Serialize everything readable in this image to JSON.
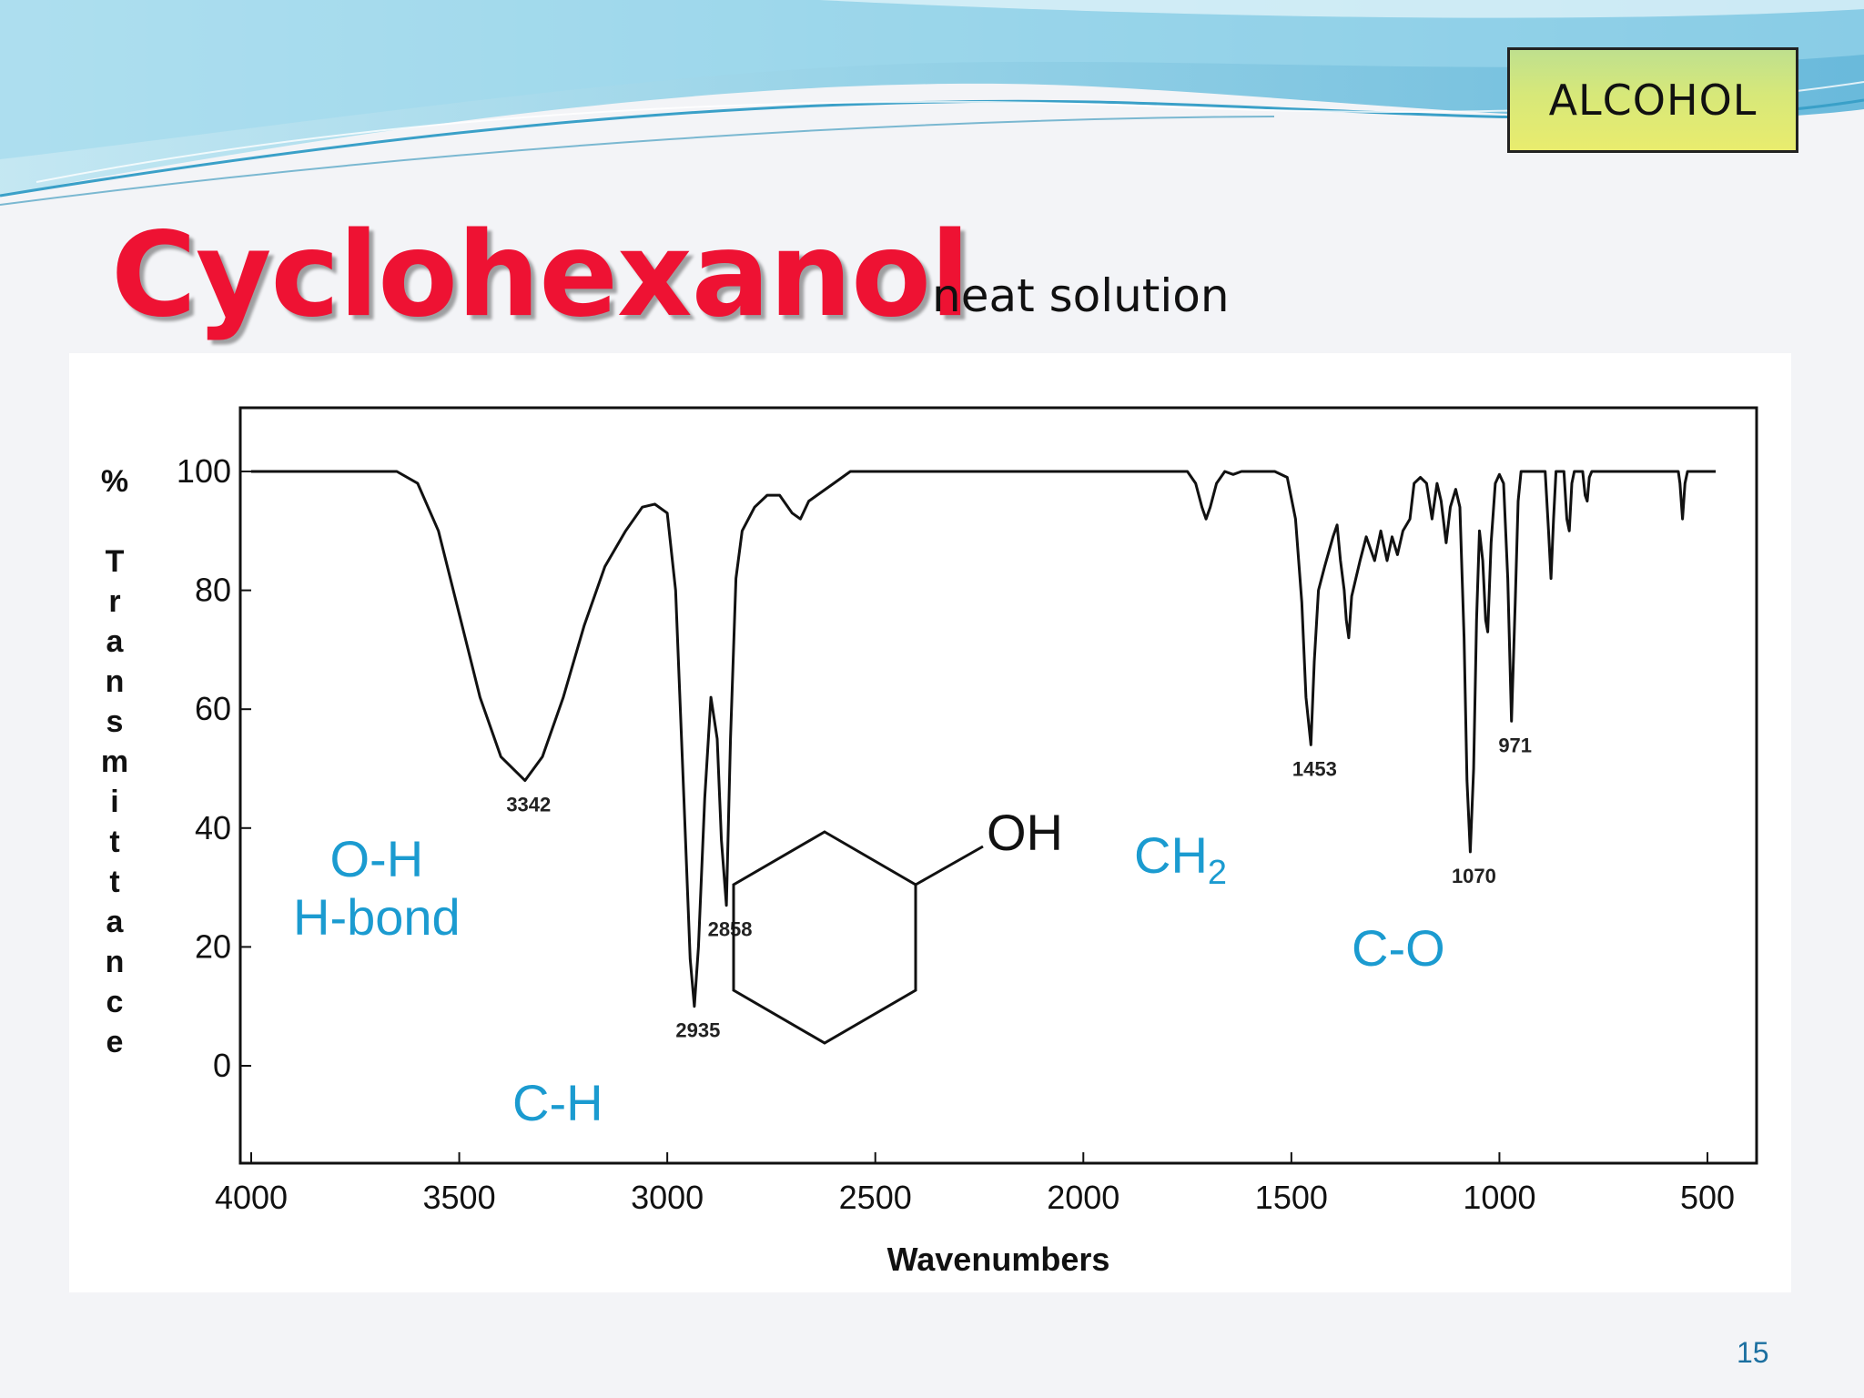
{
  "slide": {
    "tag": "ALCOHOL",
    "title": "Cyclohexanol",
    "subtitle": "neat solution",
    "page_number": "15"
  },
  "annotations": {
    "oh_line1": "O-H",
    "oh_line2": "H-bond",
    "ch": "C-H",
    "ch2_main": "CH",
    "ch2_sub": "2",
    "co": "C-O",
    "oh_group": "OH"
  },
  "colors": {
    "title": "#ee1233",
    "annotation": "#1b9bd0",
    "tag_fill": "#d7e879",
    "wave_dark": "#5ab3d8",
    "wave_light": "#8fd3ea"
  },
  "chart_data": {
    "type": "line",
    "title": "",
    "xlabel": "Wavenumbers",
    "ylabel": "% Transmittance",
    "xlim": [
      4000,
      450
    ],
    "ylim": [
      -16,
      110
    ],
    "x_reversed": true,
    "grid": false,
    "x_ticks": [
      4000,
      3500,
      3000,
      2500,
      2000,
      1500,
      1000,
      500
    ],
    "y_ticks": [
      100,
      80,
      60,
      40,
      20,
      0
    ],
    "series": [
      {
        "values": [
          [
            4000,
            100
          ],
          [
            3650,
            100
          ],
          [
            3600,
            98
          ],
          [
            3550,
            90
          ],
          [
            3500,
            76
          ],
          [
            3450,
            62
          ],
          [
            3400,
            52
          ],
          [
            3342,
            48
          ],
          [
            3300,
            52
          ],
          [
            3250,
            62
          ],
          [
            3200,
            74
          ],
          [
            3150,
            84
          ],
          [
            3100,
            90
          ],
          [
            3060,
            94
          ],
          [
            3030,
            94.5
          ],
          [
            3000,
            93
          ],
          [
            2980,
            80
          ],
          [
            2960,
            45
          ],
          [
            2945,
            18
          ],
          [
            2935,
            10
          ],
          [
            2925,
            20
          ],
          [
            2910,
            45
          ],
          [
            2895,
            62
          ],
          [
            2880,
            55
          ],
          [
            2870,
            38
          ],
          [
            2858,
            27
          ],
          [
            2848,
            55
          ],
          [
            2835,
            82
          ],
          [
            2820,
            90
          ],
          [
            2790,
            94
          ],
          [
            2760,
            96
          ],
          [
            2730,
            96
          ],
          [
            2700,
            93
          ],
          [
            2680,
            92
          ],
          [
            2660,
            95
          ],
          [
            2640,
            96
          ],
          [
            2600,
            98
          ],
          [
            2560,
            100
          ],
          [
            1750,
            100
          ],
          [
            1730,
            98
          ],
          [
            1715,
            94
          ],
          [
            1705,
            92
          ],
          [
            1695,
            94
          ],
          [
            1680,
            98
          ],
          [
            1660,
            100
          ],
          [
            1640,
            99.5
          ],
          [
            1620,
            100
          ],
          [
            1540,
            100
          ],
          [
            1510,
            99
          ],
          [
            1490,
            92
          ],
          [
            1475,
            78
          ],
          [
            1465,
            62
          ],
          [
            1453,
            54
          ],
          [
            1445,
            68
          ],
          [
            1435,
            80
          ],
          [
            1420,
            84
          ],
          [
            1400,
            89
          ],
          [
            1390,
            91
          ],
          [
            1382,
            85
          ],
          [
            1373,
            80
          ],
          [
            1368,
            75
          ],
          [
            1362,
            72
          ],
          [
            1355,
            79
          ],
          [
            1345,
            82
          ],
          [
            1335,
            85
          ],
          [
            1320,
            89
          ],
          [
            1300,
            85
          ],
          [
            1285,
            90
          ],
          [
            1270,
            85
          ],
          [
            1258,
            89
          ],
          [
            1245,
            86
          ],
          [
            1232,
            90
          ],
          [
            1215,
            92
          ],
          [
            1205,
            98
          ],
          [
            1190,
            99
          ],
          [
            1175,
            98
          ],
          [
            1162,
            92
          ],
          [
            1150,
            98
          ],
          [
            1140,
            95
          ],
          [
            1128,
            88
          ],
          [
            1118,
            94
          ],
          [
            1105,
            97
          ],
          [
            1095,
            94
          ],
          [
            1085,
            72
          ],
          [
            1078,
            48
          ],
          [
            1070,
            36
          ],
          [
            1062,
            50
          ],
          [
            1055,
            75
          ],
          [
            1048,
            90
          ],
          [
            1040,
            85
          ],
          [
            1033,
            75
          ],
          [
            1028,
            73
          ],
          [
            1020,
            88
          ],
          [
            1010,
            98
          ],
          [
            1000,
            99.5
          ],
          [
            990,
            98
          ],
          [
            980,
            82
          ],
          [
            971,
            58
          ],
          [
            962,
            78
          ],
          [
            955,
            95
          ],
          [
            948,
            100
          ],
          [
            890,
            100
          ],
          [
            882,
            90
          ],
          [
            876,
            82
          ],
          [
            870,
            92
          ],
          [
            864,
            100
          ],
          [
            845,
            100
          ],
          [
            838,
            92
          ],
          [
            832,
            90
          ],
          [
            826,
            98
          ],
          [
            820,
            100
          ],
          [
            800,
            100
          ],
          [
            794,
            96
          ],
          [
            789,
            95
          ],
          [
            784,
            99
          ],
          [
            778,
            100
          ],
          [
            570,
            100
          ],
          [
            566,
            98
          ],
          [
            560,
            92
          ],
          [
            554,
            98
          ],
          [
            548,
            100
          ],
          [
            480,
            100
          ]
        ]
      }
    ],
    "peak_labels": [
      {
        "x": 3342,
        "label": "3342"
      },
      {
        "x": 2935,
        "label": "2935"
      },
      {
        "x": 2858,
        "label": "2858"
      },
      {
        "x": 1453,
        "label": "1453"
      },
      {
        "x": 1070,
        "label": "1070"
      },
      {
        "x": 971,
        "label": "971"
      }
    ]
  }
}
